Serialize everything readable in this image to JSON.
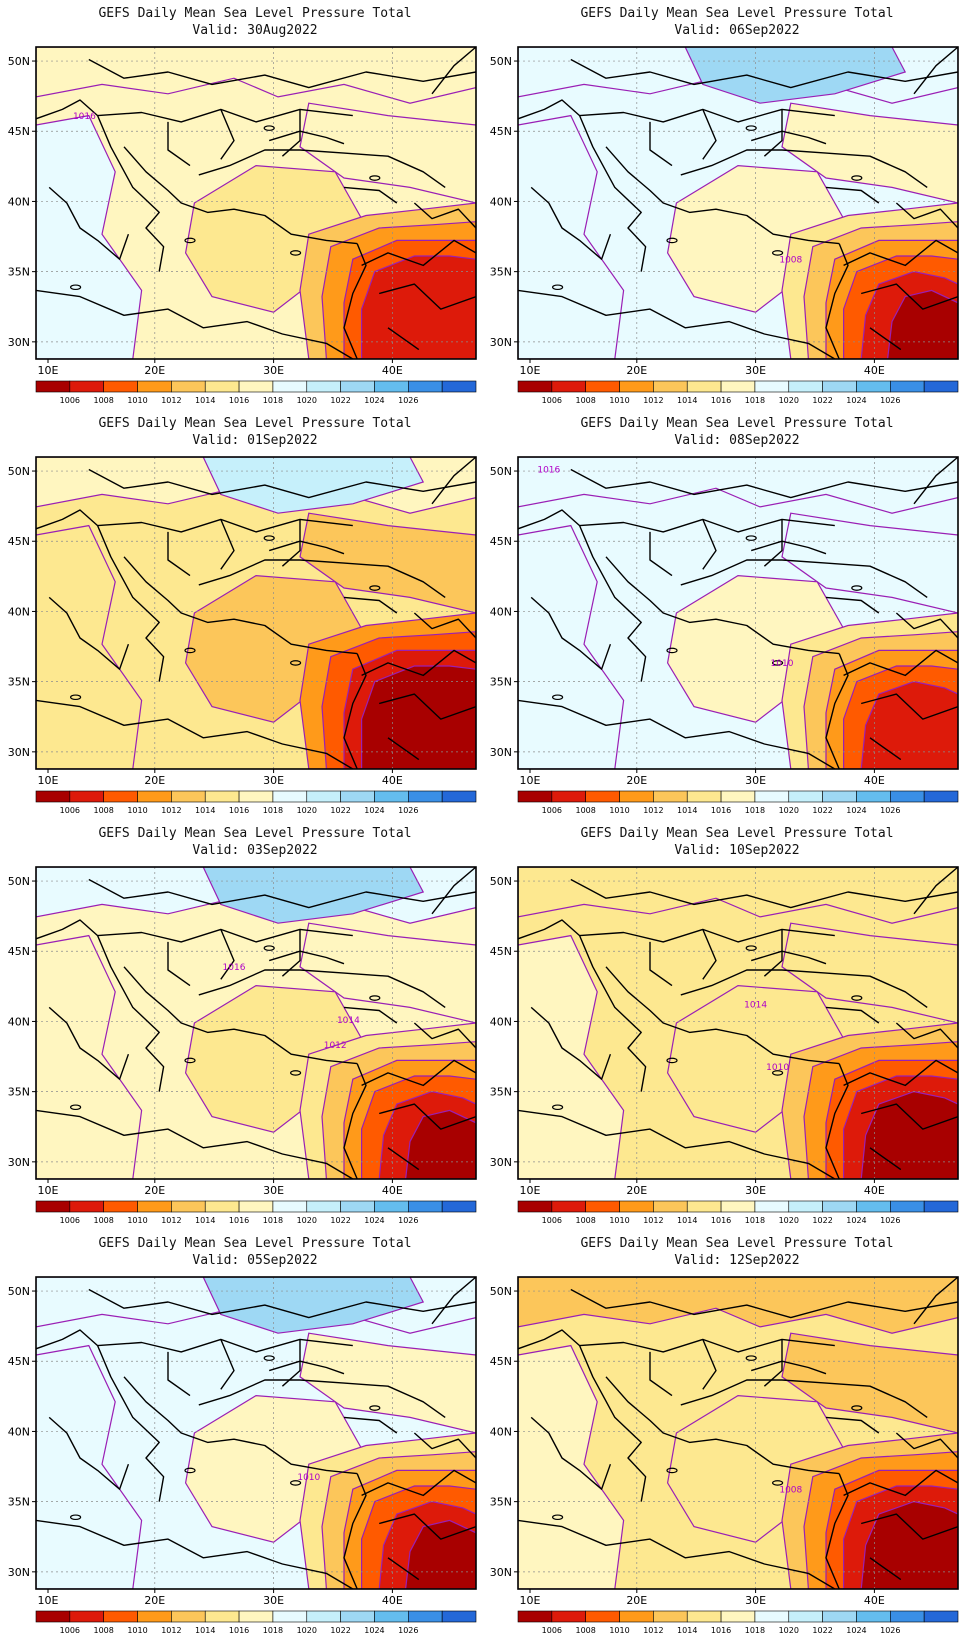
{
  "figure": {
    "panel_title": "GEFS Daily Mean Sea Level Pressure Total",
    "valid_prefix": "Valid:",
    "lat_labels": [
      "50N",
      "45N",
      "40N",
      "35N",
      "30N"
    ],
    "lon_labels": [
      "10E",
      "20E",
      "30E",
      "40E"
    ],
    "colorbar": {
      "levels": [
        "1006",
        "1008",
        "1010",
        "1012",
        "1014",
        "1016",
        "1018",
        "1020",
        "1022",
        "1024",
        "1026"
      ],
      "colors": [
        "#a80000",
        "#dd1a0a",
        "#ff5a00",
        "#ff9a1a",
        "#fcc65a",
        "#fde890",
        "#fff6c0",
        "#e8fbff",
        "#c6f0fb",
        "#9ed8f4",
        "#64bdee",
        "#3a8fe6",
        "#2468d8"
      ]
    },
    "panels": [
      {
        "id": "p1",
        "valid": "30Aug2022",
        "contour_labels": [
          "1016"
        ]
      },
      {
        "id": "p2",
        "valid": "06Sep2022",
        "contour_labels": [
          "1008"
        ]
      },
      {
        "id": "p3",
        "valid": "01Sep2022",
        "contour_labels": []
      },
      {
        "id": "p4",
        "valid": "08Sep2022",
        "contour_labels": [
          "1016",
          "1010"
        ]
      },
      {
        "id": "p5",
        "valid": "03Sep2022",
        "contour_labels": [
          "1016",
          "1014",
          "1012"
        ]
      },
      {
        "id": "p6",
        "valid": "10Sep2022",
        "contour_labels": [
          "1014",
          "1010"
        ]
      },
      {
        "id": "p7",
        "valid": "05Sep2022",
        "contour_labels": [
          "1010"
        ]
      },
      {
        "id": "p8",
        "valid": "12Sep2022",
        "contour_labels": [
          "1008"
        ]
      }
    ]
  }
}
